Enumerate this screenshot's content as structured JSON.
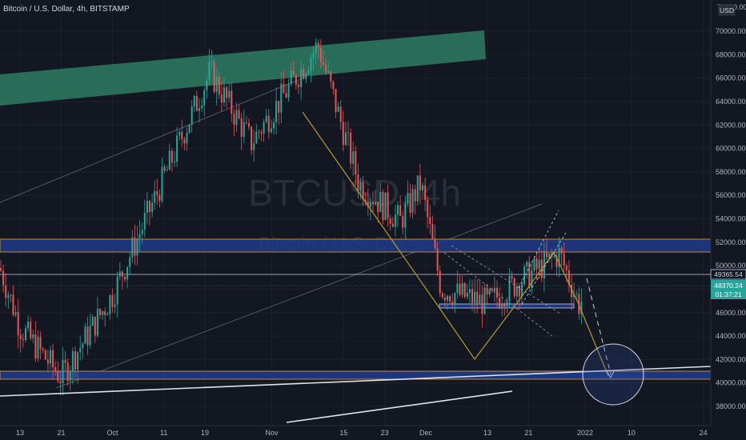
{
  "header": {
    "title": "Bitcoin / U.S. Dollar, 4h, BITSTAMP",
    "currency_badge": "USD"
  },
  "watermark": {
    "symbol": "BTCUSD, 4h",
    "name": "Bitcoin / U.S. Dollar"
  },
  "price_scale": {
    "top_cut_label": "72000.00",
    "labels": [
      "70000.00",
      "68000.00",
      "66000.00",
      "64000.00",
      "62000.00",
      "60000.00",
      "58000.00",
      "56000.00",
      "54000.00",
      "52000.00",
      "50000.00",
      "48000.00",
      "46000.00",
      "44000.00",
      "42000.00",
      "40000.00",
      "38000.00"
    ],
    "marker_line": "49365.54",
    "last_price": "48370.24",
    "countdown": "01:37:21"
  },
  "time_scale": {
    "labels": [
      "13",
      "21",
      "Oct",
      "11",
      "19",
      "Nov",
      "15",
      "23",
      "Dec",
      "13",
      "21",
      "2022",
      "10",
      "24"
    ]
  },
  "colors": {
    "background": "#131722",
    "up": "#26a69a",
    "down": "#ef5350",
    "zone_blue": "#1e3a8a",
    "zone_edge": "#f0a030",
    "green_band": "#2e7d62",
    "projection": "#b89a30",
    "last_price_bg": "#26a69a"
  },
  "chart_data": {
    "type": "candlestick",
    "title": "Bitcoin / U.S. Dollar, 4h, BITSTAMP",
    "y_unit": "USD",
    "ylim": [
      37000,
      72000
    ],
    "x_labels": [
      "13",
      "21",
      "Oct",
      "11",
      "19",
      "Nov",
      "15",
      "23",
      "Dec",
      "13",
      "21",
      "2022",
      "10",
      "24"
    ],
    "swing_path": [
      {
        "date": "2021-09-07",
        "close": 52500
      },
      {
        "date": "2021-09-13",
        "close": 44800
      },
      {
        "date": "2021-09-21",
        "close": 40500
      },
      {
        "date": "2021-10-01",
        "close": 47500
      },
      {
        "date": "2021-10-11",
        "close": 57500
      },
      {
        "date": "2021-10-20",
        "close": 66500
      },
      {
        "date": "2021-10-28",
        "close": 60500
      },
      {
        "date": "2021-11-10",
        "close": 68800
      },
      {
        "date": "2021-11-18",
        "close": 57000
      },
      {
        "date": "2021-11-26",
        "close": 53800
      },
      {
        "date": "2021-11-30",
        "close": 57000
      },
      {
        "date": "2021-12-04",
        "close": 48000
      },
      {
        "date": "2021-12-13",
        "close": 46800
      },
      {
        "date": "2021-12-27",
        "close": 51000
      },
      {
        "date": "2021-12-31",
        "close": 46500
      },
      {
        "date": "2022-01-01",
        "close": 48370
      }
    ],
    "annotations": {
      "resistance_zone_upper": [
        51500,
        52300
      ],
      "support_zone_lower": [
        40500,
        41000
      ],
      "marked_level": 49365.54,
      "last_price": 48370.24,
      "projected_target": 41000
    }
  }
}
